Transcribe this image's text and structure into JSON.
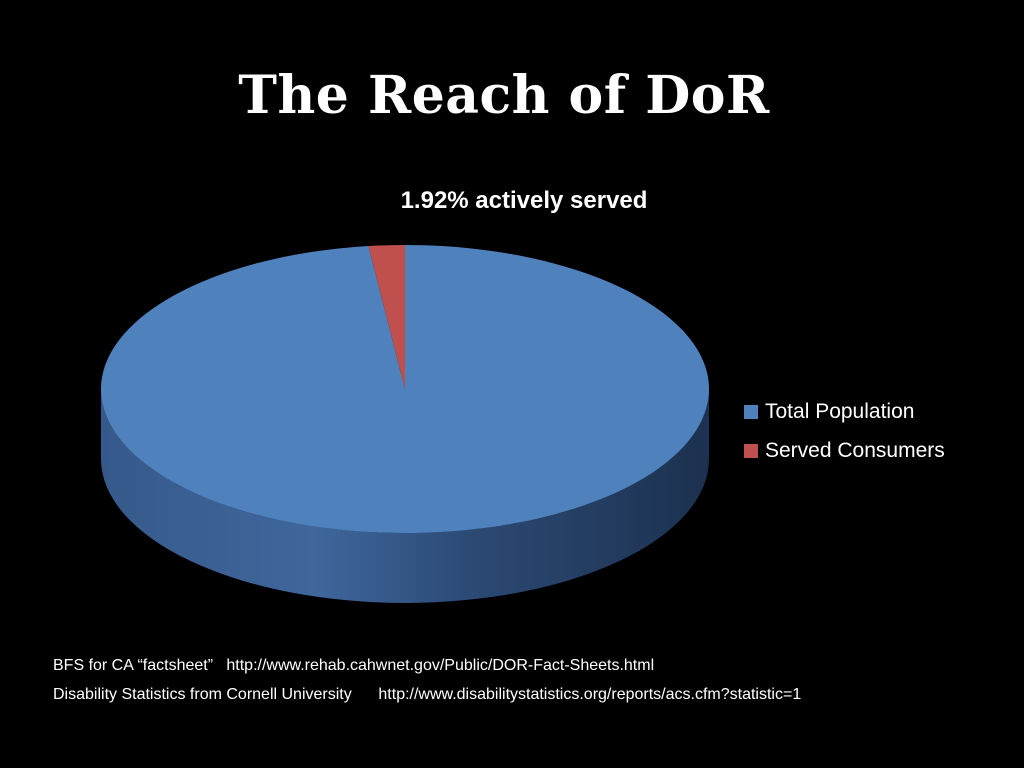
{
  "slide": {
    "title": "The Reach of DoR",
    "sources": [
      "BFS for CA “factsheet”   http://www.rehab.cahwnet.gov/Public/DOR-Fact-Sheets.html",
      "Disability Statistics from Cornell University      http://www.disabilitystatistics.org/reports/acs.cfm?statistic=1"
    ]
  },
  "chart_data": {
    "type": "pie",
    "style": "3d",
    "title": "1.92% actively served",
    "categories": [
      "Total Population",
      "Served Consumers"
    ],
    "values": [
      98.08,
      1.92
    ],
    "unit": "%",
    "colors": [
      "#4F81BD",
      "#C0504D"
    ],
    "legend_position": "right"
  }
}
